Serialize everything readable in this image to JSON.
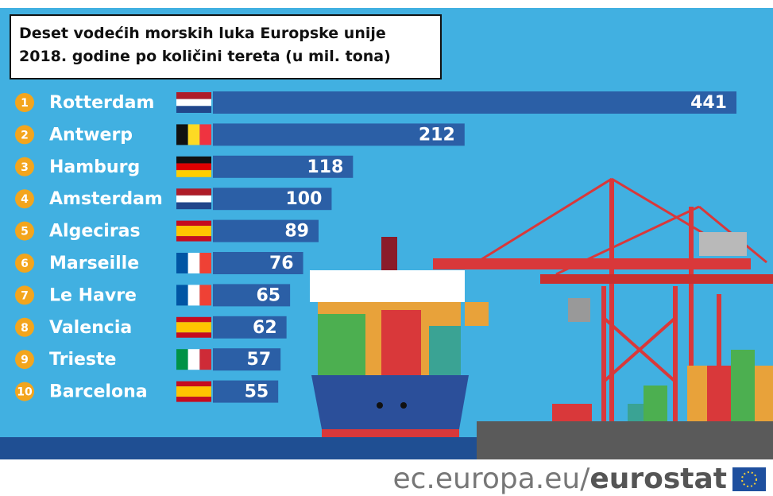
{
  "chart_data": {
    "type": "bar",
    "title": "Deset vodećih morskih luka Europske unije 2018. godine po količini tereta (u mil. tona)",
    "ranks": [
      1,
      2,
      3,
      4,
      5,
      6,
      7,
      8,
      9,
      10
    ],
    "categories": [
      "Rotterdam",
      "Antwerp",
      "Hamburg",
      "Amsterdam",
      "Algeciras",
      "Marseille",
      "Le Havre",
      "Valencia",
      "Trieste",
      "Barcelona"
    ],
    "values": [
      441,
      212,
      118,
      100,
      89,
      76,
      65,
      62,
      57,
      55
    ],
    "color": "#2b5fa6"
  },
  "footer": {
    "site": "ec.europa.eu/",
    "brand": "eurostat"
  }
}
